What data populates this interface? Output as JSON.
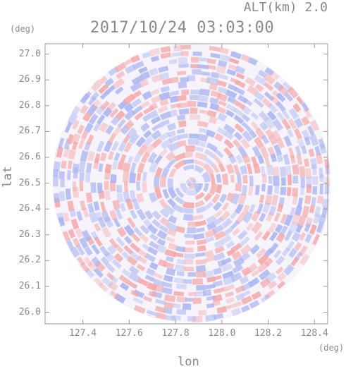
{
  "header": {
    "altitude": "ALT(km) 2.0",
    "timestamp": "2017/10/24 03:03:00"
  },
  "axes": {
    "y_unit": "(deg)",
    "x_unit": "(deg)",
    "ylabel": "lat",
    "xlabel": "lon",
    "y_ticks": [
      "27.0",
      "26.9",
      "26.8",
      "26.7",
      "26.6",
      "26.5",
      "26.4",
      "26.3",
      "26.2",
      "26.1",
      "26.0"
    ],
    "x_ticks": [
      "127.4",
      "127.6",
      "127.8",
      "128.0",
      "128.2",
      "128.4"
    ]
  },
  "map": {
    "lon_range": [
      127.237,
      128.457
    ],
    "lat_range": [
      25.955,
      27.04
    ],
    "center": {
      "lon": 127.87,
      "lat": 26.5
    },
    "radius_deg": 0.54,
    "colors": {
      "positive": "#f4a7a7",
      "negative": "#a9b4f0",
      "neutral": "#f6f3fb",
      "frame": "#9a9a9a"
    }
  }
}
